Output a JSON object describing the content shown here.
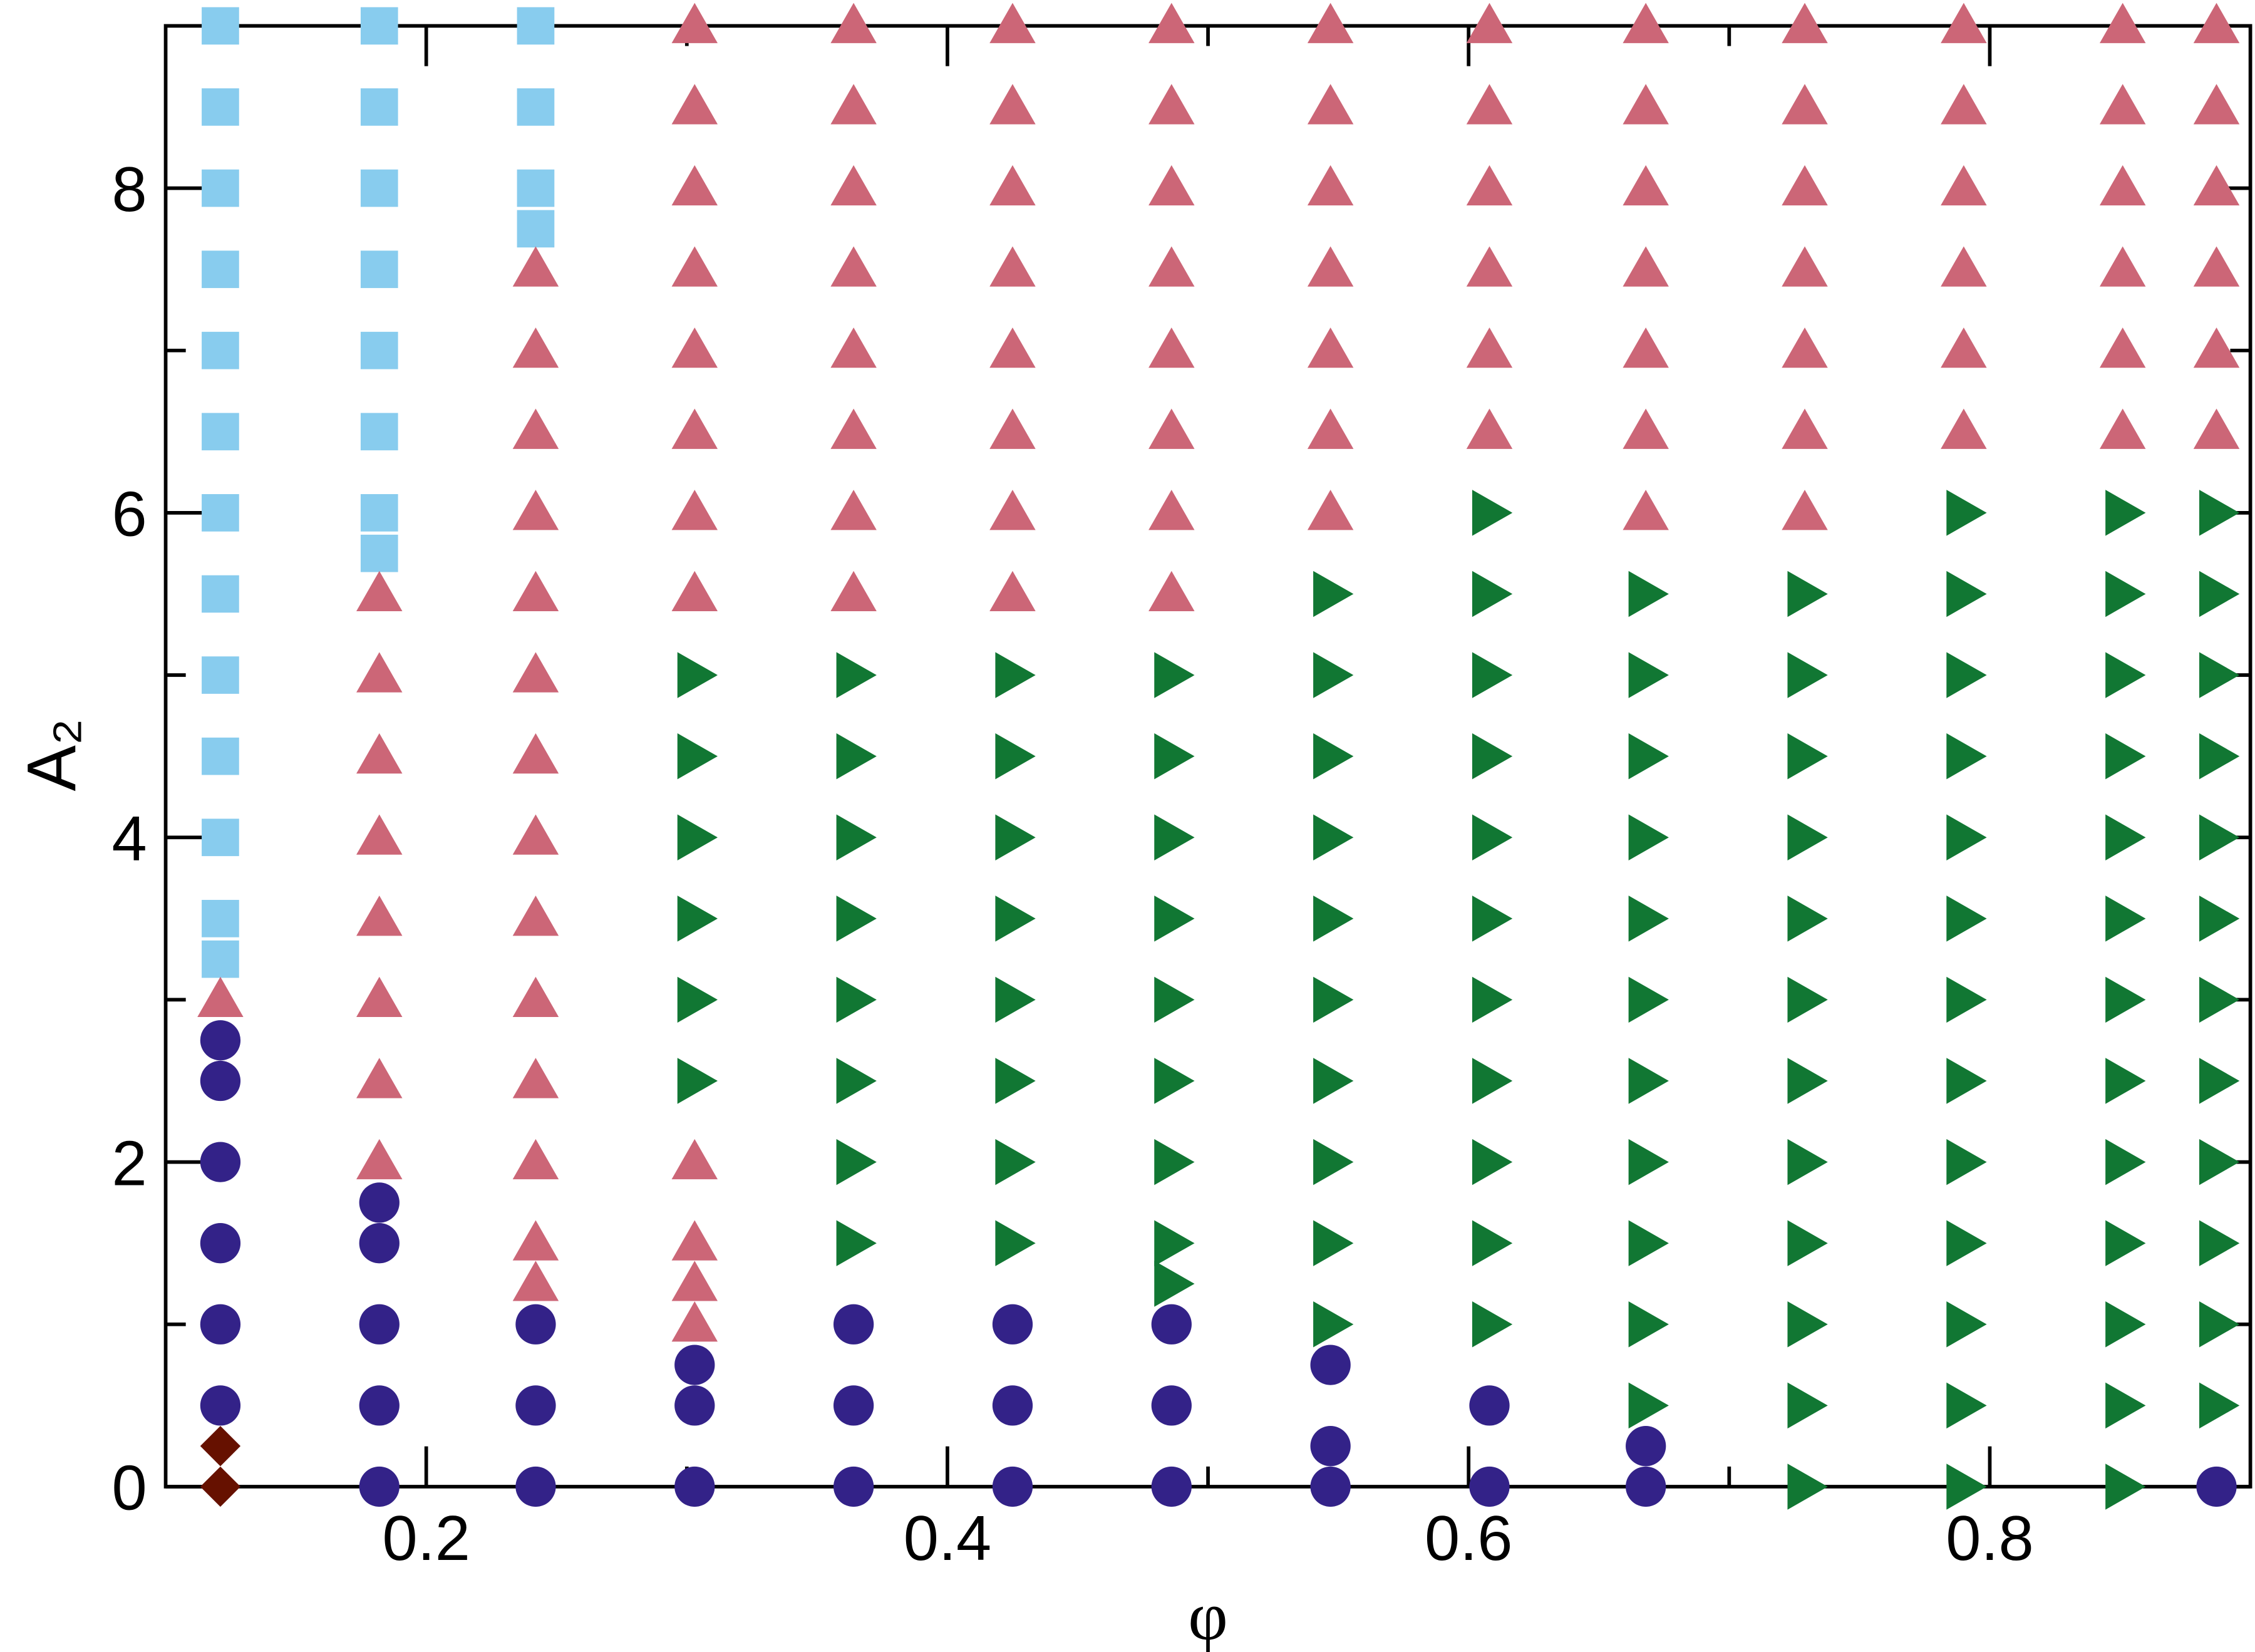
{
  "chart_data": {
    "type": "scatter",
    "xlabel": "φ",
    "ylabel": "A₂",
    "xlim": [
      0.1,
      0.9
    ],
    "ylim": [
      0,
      9
    ],
    "xticks": [
      0.2,
      0.4,
      0.6,
      0.8
    ],
    "yticks": [
      0,
      2,
      4,
      6,
      8
    ],
    "xminorticks": [
      0.3,
      0.5,
      0.7
    ],
    "yminorticks": [
      1,
      3,
      5,
      7
    ],
    "series": [
      {
        "marker": "diamond",
        "color": "#661100",
        "x": [
          0.121,
          0.121
        ],
        "values": [
          0,
          0.25
        ]
      },
      {
        "marker": "circle",
        "color": "#332288",
        "x": [
          0.121,
          0.121,
          0.121,
          0.121,
          0.121,
          0.121,
          0.182,
          0.182,
          0.182,
          0.182,
          0.182,
          0.242,
          0.242,
          0.242,
          0.303,
          0.303,
          0.303,
          0.364,
          0.364,
          0.364,
          0.425,
          0.425,
          0.425,
          0.486,
          0.486,
          0.486,
          0.547,
          0.547,
          0.547,
          0.608,
          0.608,
          0.668,
          0.668,
          0.887
        ],
        "values": [
          0.5,
          1,
          1.5,
          2,
          2.5,
          2.75,
          0,
          0.5,
          1,
          1.5,
          1.75,
          0,
          0.5,
          1,
          0,
          0.5,
          0.75,
          0,
          0.5,
          1,
          0,
          0.5,
          1,
          0,
          0.5,
          1,
          0,
          0.25,
          0.75,
          0,
          0.5,
          0,
          0.25,
          0
        ]
      },
      {
        "marker": "square",
        "color": "#88CCEE",
        "x": [
          0.121,
          0.121,
          0.121,
          0.121,
          0.121,
          0.121,
          0.121,
          0.121,
          0.121,
          0.121,
          0.121,
          0.121,
          0.121,
          0.182,
          0.182,
          0.182,
          0.182,
          0.182,
          0.182,
          0.182,
          0.182,
          0.242,
          0.242,
          0.242,
          0.242
        ],
        "values": [
          3.25,
          3.5,
          4,
          4.5,
          5,
          5.5,
          6,
          6.5,
          7,
          7.5,
          8,
          8.5,
          9,
          5.75,
          6,
          6.5,
          7,
          7.5,
          8,
          8.5,
          9,
          7.75,
          8,
          8.5,
          9
        ]
      },
      {
        "marker": "triangle-up",
        "color": "#CC6677",
        "x": [
          0.121,
          0.182,
          0.182,
          0.182,
          0.182,
          0.182,
          0.182,
          0.182,
          0.182,
          0.242,
          0.242,
          0.242,
          0.242,
          0.242,
          0.242,
          0.242,
          0.242,
          0.242,
          0.242,
          0.242,
          0.242,
          0.242,
          0.242,
          0.303,
          0.303,
          0.303,
          0.303,
          0.303,
          0.303,
          0.303,
          0.303,
          0.303,
          0.303,
          0.303,
          0.303,
          0.364,
          0.364,
          0.364,
          0.364,
          0.364,
          0.364,
          0.364,
          0.364,
          0.425,
          0.425,
          0.425,
          0.425,
          0.425,
          0.425,
          0.425,
          0.425,
          0.486,
          0.486,
          0.486,
          0.486,
          0.486,
          0.486,
          0.486,
          0.486,
          0.547,
          0.547,
          0.547,
          0.547,
          0.547,
          0.547,
          0.547,
          0.608,
          0.608,
          0.608,
          0.608,
          0.608,
          0.608,
          0.668,
          0.668,
          0.668,
          0.668,
          0.668,
          0.668,
          0.668,
          0.729,
          0.729,
          0.729,
          0.729,
          0.729,
          0.729,
          0.729,
          0.79,
          0.79,
          0.79,
          0.79,
          0.79,
          0.79,
          0.851,
          0.851,
          0.851,
          0.851,
          0.851,
          0.851,
          0.887,
          0.887,
          0.887,
          0.887,
          0.887,
          0.887
        ],
        "values": [
          3,
          2,
          2.5,
          3,
          3.5,
          4,
          4.5,
          5,
          5.5,
          1.25,
          1.5,
          2,
          2.5,
          3,
          3.5,
          4,
          4.5,
          5,
          5.5,
          6,
          6.5,
          7,
          7.5,
          1,
          1.25,
          1.5,
          2,
          5.5,
          6,
          6.5,
          7,
          7.5,
          8,
          8.5,
          9,
          5.5,
          6,
          6.5,
          7,
          7.5,
          8,
          8.5,
          9,
          5.5,
          6,
          6.5,
          7,
          7.5,
          8,
          8.5,
          9,
          5.5,
          6,
          6.5,
          7,
          7.5,
          8,
          8.5,
          9,
          6,
          6.5,
          7,
          7.5,
          8,
          8.5,
          9,
          6.5,
          7,
          7.5,
          8,
          8.5,
          9,
          6,
          6.5,
          7,
          7.5,
          8,
          8.5,
          9,
          6,
          6.5,
          7,
          7.5,
          8,
          8.5,
          9,
          6.5,
          7,
          7.5,
          8,
          8.5,
          9,
          6.5,
          7,
          7.5,
          8,
          8.5,
          9,
          6.5,
          7,
          7.5,
          8,
          8.5,
          9
        ]
      },
      {
        "marker": "triangle-right",
        "color": "#117733",
        "x": [
          0.303,
          0.303,
          0.303,
          0.303,
          0.303,
          0.303,
          0.364,
          0.364,
          0.364,
          0.364,
          0.364,
          0.364,
          0.364,
          0.364,
          0.425,
          0.425,
          0.425,
          0.425,
          0.425,
          0.425,
          0.425,
          0.425,
          0.486,
          0.486,
          0.486,
          0.486,
          0.486,
          0.486,
          0.486,
          0.486,
          0.486,
          0.547,
          0.547,
          0.547,
          0.547,
          0.547,
          0.547,
          0.547,
          0.547,
          0.547,
          0.547,
          0.608,
          0.608,
          0.608,
          0.608,
          0.608,
          0.608,
          0.608,
          0.608,
          0.608,
          0.608,
          0.608,
          0.668,
          0.668,
          0.668,
          0.668,
          0.668,
          0.668,
          0.668,
          0.668,
          0.668,
          0.668,
          0.668,
          0.729,
          0.729,
          0.729,
          0.729,
          0.729,
          0.729,
          0.729,
          0.729,
          0.729,
          0.729,
          0.729,
          0.729,
          0.79,
          0.79,
          0.79,
          0.79,
          0.79,
          0.79,
          0.79,
          0.79,
          0.79,
          0.79,
          0.79,
          0.79,
          0.79,
          0.851,
          0.851,
          0.851,
          0.851,
          0.851,
          0.851,
          0.851,
          0.851,
          0.851,
          0.851,
          0.851,
          0.851,
          0.851,
          0.887,
          0.887,
          0.887,
          0.887,
          0.887,
          0.887,
          0.887,
          0.887,
          0.887,
          0.887,
          0.887,
          0.887
        ],
        "values": [
          2.5,
          3,
          3.5,
          4,
          4.5,
          5,
          1.5,
          2,
          2.5,
          3,
          3.5,
          4,
          4.5,
          5,
          1.5,
          2,
          2.5,
          3,
          3.5,
          4,
          4.5,
          5,
          1.25,
          1.5,
          2,
          2.5,
          3,
          3.5,
          4,
          4.5,
          5,
          1,
          1.5,
          2,
          2.5,
          3,
          3.5,
          4,
          4.5,
          5,
          5.5,
          1,
          1.5,
          2,
          2.5,
          3,
          3.5,
          4,
          4.5,
          5,
          5.5,
          6,
          0.5,
          1,
          1.5,
          2,
          2.5,
          3,
          3.5,
          4,
          4.5,
          5,
          5.5,
          0,
          0.5,
          1,
          1.5,
          2,
          2.5,
          3,
          3.5,
          4,
          4.5,
          5,
          5.5,
          0,
          0.5,
          1,
          1.5,
          2,
          2.5,
          3,
          3.5,
          4,
          4.5,
          5,
          5.5,
          6,
          0,
          0.5,
          1,
          1.5,
          2,
          2.5,
          3,
          3.5,
          4,
          4.5,
          5,
          5.5,
          6,
          0.5,
          1,
          1.5,
          2,
          2.5,
          3,
          3.5,
          4,
          4.5,
          5,
          5.5,
          6
        ]
      }
    ]
  }
}
